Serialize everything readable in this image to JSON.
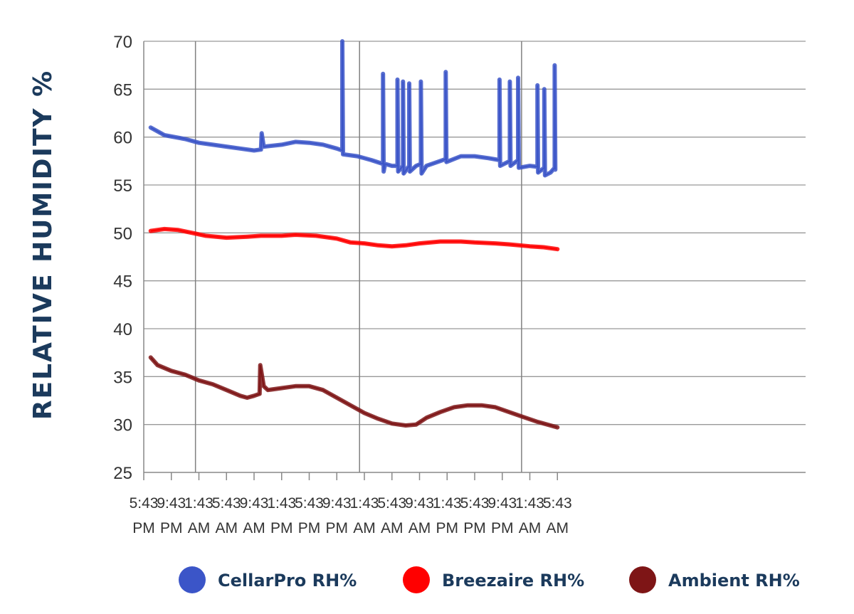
{
  "chart_data": {
    "type": "line",
    "ylabel": "RELATIVE HUMIDITY %",
    "ylim": [
      25,
      70
    ],
    "yticks": [
      25,
      30,
      35,
      40,
      45,
      50,
      55,
      60,
      65,
      70
    ],
    "xlim": [
      0,
      96
    ],
    "x_tick_labels": [
      {
        "t": 0,
        "time": "5:43",
        "ampm": "PM"
      },
      {
        "t": 4,
        "time": "9:43",
        "ampm": "PM"
      },
      {
        "t": 8,
        "time": "1:43",
        "ampm": "AM"
      },
      {
        "t": 12,
        "time": "5:43",
        "ampm": "AM"
      },
      {
        "t": 16,
        "time": "9:43",
        "ampm": "AM"
      },
      {
        "t": 20,
        "time": "1:43",
        "ampm": "PM"
      },
      {
        "t": 24,
        "time": "5:43",
        "ampm": "PM"
      },
      {
        "t": 28,
        "time": "9:43",
        "ampm": "PM"
      },
      {
        "t": 32,
        "time": "1:43",
        "ampm": "AM"
      },
      {
        "t": 36,
        "time": "5:43",
        "ampm": "AM"
      },
      {
        "t": 40,
        "time": "9:43",
        "ampm": "AM"
      },
      {
        "t": 44,
        "time": "1:43",
        "ampm": "PM"
      },
      {
        "t": 48,
        "time": "5:43",
        "ampm": "PM"
      },
      {
        "t": 52,
        "time": "9:43",
        "ampm": "PM"
      },
      {
        "t": 56,
        "time": "1:43",
        "ampm": "AM"
      },
      {
        "t": 60,
        "time": "5:43",
        "ampm": "AM"
      }
    ],
    "grid": {
      "horizontal": true,
      "vertical_at_hours": [
        7.5,
        31.3,
        54.8
      ]
    },
    "legend_position": "bottom",
    "series": [
      {
        "name": "CellarPro RH%",
        "color": "#3b55c8",
        "points": [
          [
            1,
            61.0
          ],
          [
            3,
            60.2
          ],
          [
            6,
            59.8
          ],
          [
            8,
            59.4
          ],
          [
            10,
            59.2
          ],
          [
            12,
            59.0
          ],
          [
            14,
            58.8
          ],
          [
            16,
            58.6
          ],
          [
            17,
            58.7
          ],
          [
            17.1,
            60.4
          ],
          [
            17.4,
            59.0
          ],
          [
            20,
            59.2
          ],
          [
            22,
            59.5
          ],
          [
            24,
            59.4
          ],
          [
            26,
            59.2
          ],
          [
            28,
            58.8
          ],
          [
            28.8,
            58.6
          ],
          [
            28.8,
            70.0
          ],
          [
            28.9,
            58.2
          ],
          [
            31,
            58.0
          ],
          [
            33,
            57.6
          ],
          [
            34.7,
            57.2
          ],
          [
            34.7,
            66.6
          ],
          [
            34.8,
            56.4
          ],
          [
            35,
            57.2
          ],
          [
            36,
            57.0
          ],
          [
            36.8,
            57.0
          ],
          [
            36.8,
            66.0
          ],
          [
            36.9,
            56.4
          ],
          [
            37.6,
            57.0
          ],
          [
            37.6,
            65.8
          ],
          [
            37.7,
            56.2
          ],
          [
            38.5,
            57.0
          ],
          [
            38.5,
            65.6
          ],
          [
            38.6,
            56.4
          ],
          [
            39.5,
            57.0
          ],
          [
            40.2,
            57.2
          ],
          [
            40.2,
            65.8
          ],
          [
            40.3,
            56.2
          ],
          [
            41,
            57.0
          ],
          [
            43,
            57.5
          ],
          [
            43.8,
            57.7
          ],
          [
            43.8,
            66.8
          ],
          [
            43.9,
            57.4
          ],
          [
            46,
            58.0
          ],
          [
            48,
            58.0
          ],
          [
            50,
            57.8
          ],
          [
            51.6,
            57.6
          ],
          [
            51.6,
            66.0
          ],
          [
            51.7,
            57.0
          ],
          [
            53.1,
            57.5
          ],
          [
            53.1,
            65.8
          ],
          [
            53.2,
            57.0
          ],
          [
            54.3,
            57.6
          ],
          [
            54.3,
            66.2
          ],
          [
            54.4,
            56.8
          ],
          [
            56,
            57.0
          ],
          [
            57.1,
            56.9
          ],
          [
            57.1,
            65.4
          ],
          [
            57.2,
            56.3
          ],
          [
            58.1,
            56.8
          ],
          [
            58.1,
            65.0
          ],
          [
            58.2,
            56.0
          ],
          [
            59,
            56.3
          ],
          [
            59.6,
            56.8
          ],
          [
            59.6,
            67.5
          ],
          [
            59.7,
            56.6
          ]
        ]
      },
      {
        "name": "Breezaire RH%",
        "color": "#ff0000",
        "points": [
          [
            1,
            50.2
          ],
          [
            3,
            50.4
          ],
          [
            5,
            50.3
          ],
          [
            7,
            50.0
          ],
          [
            9,
            49.7
          ],
          [
            12,
            49.5
          ],
          [
            15,
            49.6
          ],
          [
            17,
            49.7
          ],
          [
            20,
            49.7
          ],
          [
            22,
            49.8
          ],
          [
            25,
            49.7
          ],
          [
            28,
            49.4
          ],
          [
            30,
            49.0
          ],
          [
            32,
            48.9
          ],
          [
            34,
            48.7
          ],
          [
            36,
            48.6
          ],
          [
            38,
            48.7
          ],
          [
            40,
            48.9
          ],
          [
            43,
            49.1
          ],
          [
            46,
            49.1
          ],
          [
            48,
            49.0
          ],
          [
            51,
            48.9
          ],
          [
            53,
            48.8
          ],
          [
            56,
            48.6
          ],
          [
            58,
            48.5
          ],
          [
            60,
            48.3
          ]
        ]
      },
      {
        "name": "Ambient RH%",
        "color": "#7e1516",
        "points": [
          [
            1,
            37.0
          ],
          [
            2,
            36.2
          ],
          [
            4,
            35.6
          ],
          [
            6,
            35.2
          ],
          [
            8,
            34.6
          ],
          [
            10,
            34.2
          ],
          [
            12,
            33.6
          ],
          [
            14,
            33.0
          ],
          [
            15,
            32.8
          ],
          [
            16,
            33.0
          ],
          [
            16.8,
            33.2
          ],
          [
            16.9,
            36.2
          ],
          [
            17.4,
            34.0
          ],
          [
            18,
            33.6
          ],
          [
            20,
            33.8
          ],
          [
            22,
            34.0
          ],
          [
            24,
            34.0
          ],
          [
            26,
            33.6
          ],
          [
            28,
            32.8
          ],
          [
            30,
            32.0
          ],
          [
            32,
            31.2
          ],
          [
            34,
            30.6
          ],
          [
            36,
            30.1
          ],
          [
            38,
            29.9
          ],
          [
            39.5,
            30.0
          ],
          [
            41,
            30.7
          ],
          [
            43,
            31.3
          ],
          [
            45,
            31.8
          ],
          [
            47,
            32.0
          ],
          [
            49,
            32.0
          ],
          [
            51,
            31.8
          ],
          [
            53,
            31.3
          ],
          [
            55,
            30.8
          ],
          [
            57,
            30.3
          ],
          [
            59,
            29.9
          ],
          [
            60,
            29.7
          ]
        ]
      }
    ]
  }
}
